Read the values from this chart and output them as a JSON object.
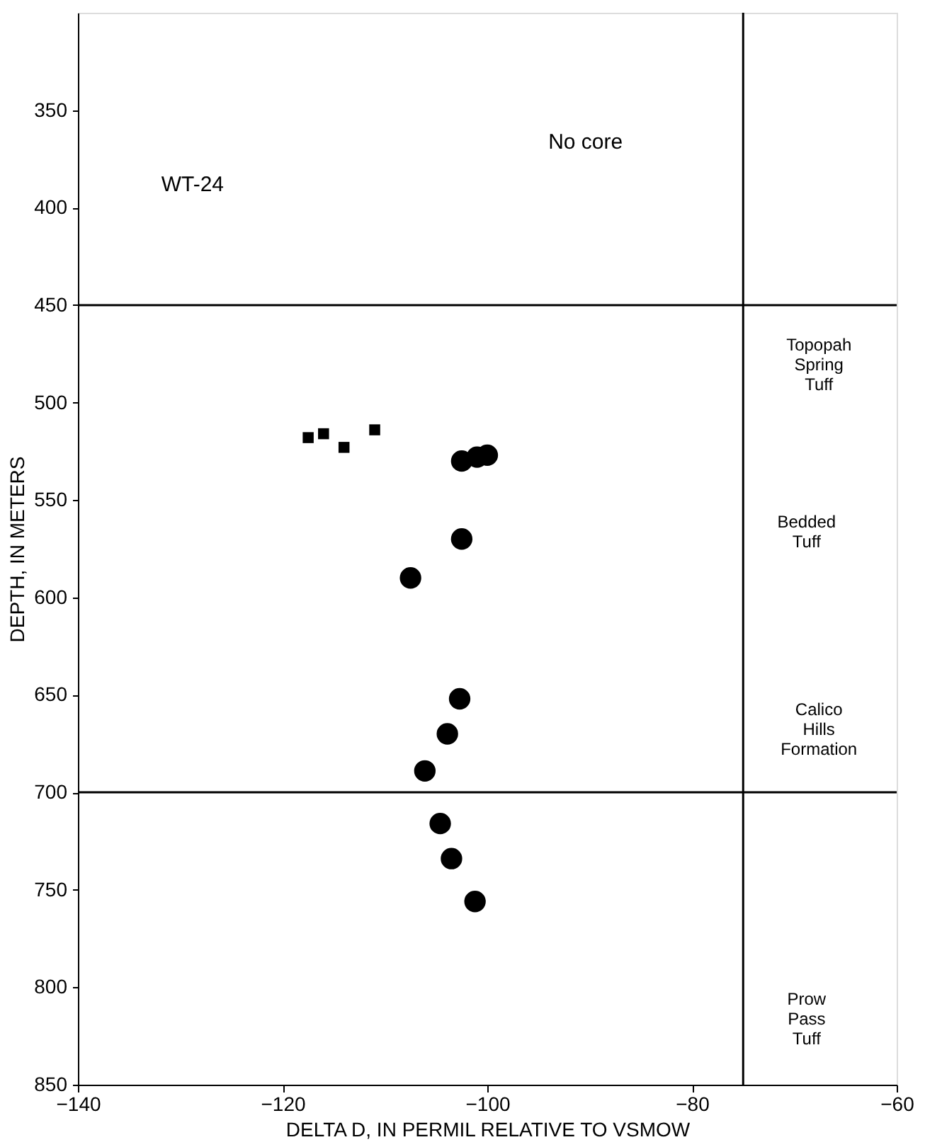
{
  "chart_data": {
    "type": "scatter",
    "xlabel": "DELTA D, IN PERMIL RELATIVE TO VSMOW",
    "ylabel": "DEPTH, IN METERS",
    "xlim": [
      -140,
      -60
    ],
    "xticks": [
      -140,
      -120,
      -100,
      -80,
      -60
    ],
    "ylim": [
      850,
      300
    ],
    "yticks": [
      350,
      400,
      450,
      500,
      550,
      600,
      650,
      700,
      750,
      800,
      850
    ],
    "grid": false,
    "series": [
      {
        "color": "#000000",
        "marker": "square",
        "x": [
          -117.5,
          -116,
          -114,
          -111
        ],
        "values": [
          518,
          516,
          523,
          514
        ]
      },
      {
        "color": "#000000",
        "marker": "circle",
        "x": [
          -102.5,
          -101,
          -100,
          -102.5,
          -107.5,
          -102.7,
          -103.9,
          -106.1,
          -104.6,
          -103.5,
          -101.2
        ],
        "values": [
          530,
          528,
          527,
          570,
          590,
          652,
          670,
          689,
          716,
          734,
          756
        ]
      }
    ],
    "ref_lines": [
      {
        "axis": "y",
        "value": 450,
        "color": "#000000"
      },
      {
        "axis": "y",
        "value": 700,
        "color": "#000000"
      },
      {
        "axis": "x",
        "value": -75,
        "color": "#000000"
      }
    ],
    "annotations": [
      "WT-24",
      "No core",
      "Topopah Spring Tuff",
      "Bedded Tuff",
      "Calico Hills Formation",
      "Prow Pass Tuff"
    ]
  }
}
